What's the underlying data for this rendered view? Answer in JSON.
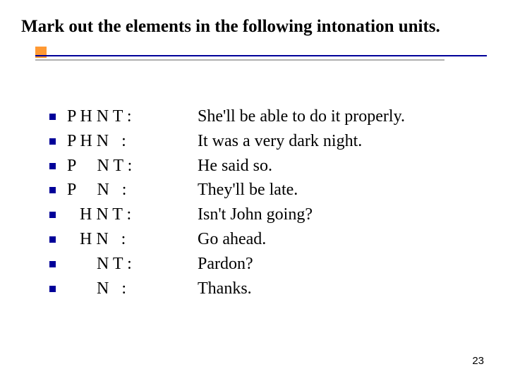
{
  "title": "Mark out the elements in the following intonation units.",
  "colors": {
    "accent_square": "#ff9933",
    "rule_primary": "#000099",
    "rule_secondary": "#b0b0b0",
    "bullet": "#000099",
    "text": "#000000",
    "background": "#ffffff"
  },
  "typography": {
    "title_fontsize": 25,
    "title_fontweight": "bold",
    "body_fontsize": 24,
    "page_num_fontsize": 15,
    "font_family": "Times New Roman"
  },
  "rows": [
    {
      "pattern": "P H N T :",
      "example": "She'll be able to do it properly."
    },
    {
      "pattern": "P H N   :",
      "example": "It was a very dark night."
    },
    {
      "pattern": "P     N T :",
      "example": "He said so."
    },
    {
      "pattern": "P     N   :",
      "example": "They'll be late."
    },
    {
      "pattern": "   H N T :",
      "example": "Isn't John going?"
    },
    {
      "pattern": "   H N   :",
      "example": "Go ahead."
    },
    {
      "pattern": "       N T :",
      "example": "Pardon?"
    },
    {
      "pattern": "       N   :",
      "example": "Thanks."
    }
  ],
  "page_number": "23"
}
